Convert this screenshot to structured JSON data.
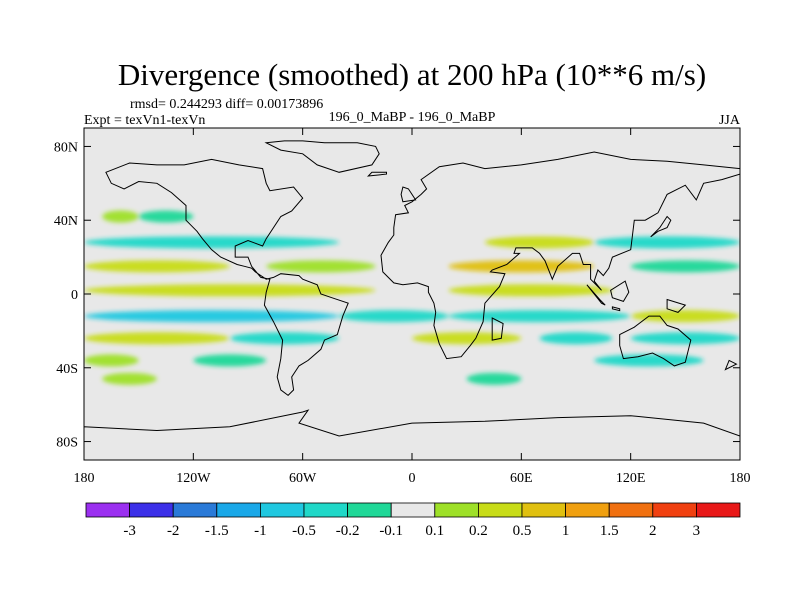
{
  "chart_data": {
    "type": "heatmap",
    "title": "Divergence (smoothed) at 200 hPa (10**6 m/s)",
    "stats": "rmsd= 0.244293 diff= 0.00173896",
    "expt": "Expt = texVn1-texVn",
    "case": "196_0_MaBP - 196_0_MaBP",
    "season": "JJA",
    "xlabel": "",
    "ylabel": "",
    "xlim": [
      -180,
      180
    ],
    "ylim": [
      -90,
      90
    ],
    "x_ticks": [
      {
        "value": -180,
        "label": "180"
      },
      {
        "value": -120,
        "label": "120W"
      },
      {
        "value": -60,
        "label": "60W"
      },
      {
        "value": 0,
        "label": "0"
      },
      {
        "value": 60,
        "label": "60E"
      },
      {
        "value": 120,
        "label": "120E"
      },
      {
        "value": 180,
        "label": "180"
      }
    ],
    "y_ticks": [
      {
        "value": 80,
        "label": "80N"
      },
      {
        "value": 40,
        "label": "40N"
      },
      {
        "value": 0,
        "label": "0"
      },
      {
        "value": -40,
        "label": "40S"
      },
      {
        "value": -80,
        "label": "80S"
      }
    ],
    "colorbar": {
      "colors": [
        "#9b30f0",
        "#3c30e8",
        "#2a7ad8",
        "#1aa8e8",
        "#20c8e0",
        "#20d8c8",
        "#20d898",
        "#e8e8e8",
        "#9ee028",
        "#c8dc18",
        "#e0c010",
        "#f0a010",
        "#f07010",
        "#f04010",
        "#e81818"
      ],
      "labels": [
        "-3",
        "-2",
        "-1.5",
        "-1",
        "-0.5",
        "-0.2",
        "-0.1",
        "0.1",
        "0.2",
        "0.5",
        "1",
        "1.5",
        "2",
        "3"
      ]
    },
    "bands": [
      {
        "lat": 42,
        "lon_start": -170,
        "lon_end": -150,
        "sign": 1,
        "level": 1
      },
      {
        "lat": 42,
        "lon_start": -150,
        "lon_end": -120,
        "sign": -1,
        "level": 1
      },
      {
        "lat": 28,
        "lon_start": -180,
        "lon_end": -40,
        "sign": -1,
        "level": 2
      },
      {
        "lat": 28,
        "lon_start": 40,
        "lon_end": 100,
        "sign": 1,
        "level": 2
      },
      {
        "lat": 28,
        "lon_start": 100,
        "lon_end": 180,
        "sign": -1,
        "level": 2
      },
      {
        "lat": 15,
        "lon_start": -180,
        "lon_end": -100,
        "sign": 1,
        "level": 2
      },
      {
        "lat": 15,
        "lon_start": -80,
        "lon_end": -20,
        "sign": 1,
        "level": 1
      },
      {
        "lat": 15,
        "lon_start": 20,
        "lon_end": 100,
        "sign": 1,
        "level": 3
      },
      {
        "lat": 15,
        "lon_start": 120,
        "lon_end": 180,
        "sign": -1,
        "level": 1
      },
      {
        "lat": 2,
        "lon_start": -180,
        "lon_end": -20,
        "sign": 1,
        "level": 2
      },
      {
        "lat": 2,
        "lon_start": 20,
        "lon_end": 110,
        "sign": 1,
        "level": 2
      },
      {
        "lat": -12,
        "lon_start": -180,
        "lon_end": -40,
        "sign": -1,
        "level": 3
      },
      {
        "lat": -12,
        "lon_start": -40,
        "lon_end": 20,
        "sign": -1,
        "level": 2
      },
      {
        "lat": -12,
        "lon_start": 20,
        "lon_end": 120,
        "sign": -1,
        "level": 2
      },
      {
        "lat": -12,
        "lon_start": 120,
        "lon_end": 180,
        "sign": 1,
        "level": 2
      },
      {
        "lat": -24,
        "lon_start": -180,
        "lon_end": -100,
        "sign": 1,
        "level": 2
      },
      {
        "lat": -24,
        "lon_start": -100,
        "lon_end": -40,
        "sign": -1,
        "level": 2
      },
      {
        "lat": -24,
        "lon_start": 0,
        "lon_end": 60,
        "sign": 1,
        "level": 2
      },
      {
        "lat": -24,
        "lon_start": 70,
        "lon_end": 110,
        "sign": -1,
        "level": 2
      },
      {
        "lat": -24,
        "lon_start": 120,
        "lon_end": 180,
        "sign": -1,
        "level": 2
      },
      {
        "lat": -36,
        "lon_start": -180,
        "lon_end": -150,
        "sign": 1,
        "level": 1
      },
      {
        "lat": -36,
        "lon_start": -120,
        "lon_end": -80,
        "sign": -1,
        "level": 1
      },
      {
        "lat": -36,
        "lon_start": 100,
        "lon_end": 160,
        "sign": -1,
        "level": 2
      },
      {
        "lat": -46,
        "lon_start": -170,
        "lon_end": -140,
        "sign": 1,
        "level": 1
      },
      {
        "lat": -46,
        "lon_start": 30,
        "lon_end": 60,
        "sign": -1,
        "level": 1
      }
    ],
    "coastlines": [
      [
        [
          -80,
          82
        ],
        [
          -70,
          83
        ],
        [
          -60,
          83
        ],
        [
          -48,
          82
        ],
        [
          -30,
          82
        ],
        [
          -20,
          80
        ],
        [
          -18,
          76
        ],
        [
          -22,
          70
        ],
        [
          -40,
          66
        ],
        [
          -52,
          70
        ],
        [
          -60,
          76
        ],
        [
          -72,
          78
        ],
        [
          -80,
          82
        ]
      ],
      [
        [
          -168,
          66
        ],
        [
          -155,
          71
        ],
        [
          -140,
          70
        ],
        [
          -125,
          70
        ],
        [
          -110,
          73
        ],
        [
          -95,
          70
        ],
        [
          -82,
          68
        ],
        [
          -80,
          60
        ],
        [
          -78,
          56
        ],
        [
          -65,
          58
        ],
        [
          -60,
          52
        ],
        [
          -66,
          45
        ],
        [
          -72,
          42
        ],
        [
          -76,
          36
        ],
        [
          -80,
          30
        ],
        [
          -82,
          26
        ],
        [
          -90,
          29
        ],
        [
          -97,
          26
        ],
        [
          -97,
          20
        ],
        [
          -90,
          20
        ],
        [
          -88,
          15
        ],
        [
          -83,
          9
        ],
        [
          -78,
          8
        ],
        [
          -80,
          1
        ],
        [
          -81,
          -6
        ],
        [
          -76,
          -15
        ],
        [
          -71,
          -25
        ],
        [
          -72,
          -35
        ],
        [
          -74,
          -45
        ],
        [
          -72,
          -52
        ],
        [
          -68,
          -55
        ],
        [
          -65,
          -52
        ],
        [
          -66,
          -45
        ],
        [
          -62,
          -39
        ],
        [
          -57,
          -36
        ],
        [
          -50,
          -30
        ],
        [
          -48,
          -25
        ],
        [
          -41,
          -22
        ],
        [
          -38,
          -12
        ],
        [
          -35,
          -5
        ],
        [
          -44,
          -2
        ],
        [
          -50,
          0
        ],
        [
          -52,
          5
        ],
        [
          -60,
          8
        ],
        [
          -62,
          10
        ],
        [
          -72,
          11
        ],
        [
          -76,
          9
        ],
        [
          -80,
          8
        ],
        [
          -86,
          12
        ],
        [
          -88,
          14
        ],
        [
          -92,
          15
        ],
        [
          -96,
          16
        ],
        [
          -105,
          20
        ],
        [
          -110,
          24
        ],
        [
          -115,
          30
        ],
        [
          -118,
          34
        ],
        [
          -124,
          40
        ],
        [
          -124,
          48
        ],
        [
          -132,
          55
        ],
        [
          -140,
          60
        ],
        [
          -150,
          61
        ],
        [
          -158,
          57
        ],
        [
          -165,
          60
        ],
        [
          -168,
          66
        ]
      ],
      [
        [
          -10,
          36
        ],
        [
          -9,
          43
        ],
        [
          -2,
          44
        ],
        [
          -4,
          48
        ],
        [
          0,
          50
        ],
        [
          5,
          54
        ],
        [
          8,
          57
        ],
        [
          5,
          62
        ],
        [
          15,
          69
        ],
        [
          28,
          71
        ],
        [
          40,
          68
        ],
        [
          60,
          70
        ],
        [
          80,
          73
        ],
        [
          100,
          77
        ],
        [
          120,
          73
        ],
        [
          140,
          72
        ],
        [
          160,
          70
        ],
        [
          180,
          68
        ],
        [
          180,
          65
        ],
        [
          170,
          62
        ],
        [
          160,
          60
        ],
        [
          156,
          51
        ],
        [
          150,
          59
        ],
        [
          140,
          54
        ],
        [
          135,
          44
        ],
        [
          128,
          40
        ],
        [
          122,
          40
        ],
        [
          121,
          32
        ],
        [
          120,
          24
        ],
        [
          110,
          20
        ],
        [
          108,
          14
        ],
        [
          105,
          10
        ],
        [
          102,
          13
        ],
        [
          100,
          7
        ],
        [
          104,
          2
        ],
        [
          98,
          8
        ],
        [
          98,
          16
        ],
        [
          94,
          16
        ],
        [
          92,
          22
        ],
        [
          88,
          22
        ],
        [
          80,
          15
        ],
        [
          77,
          8
        ],
        [
          73,
          18
        ],
        [
          70,
          22
        ],
        [
          66,
          25
        ],
        [
          57,
          25
        ],
        [
          56,
          22
        ],
        [
          59,
          22
        ],
        [
          52,
          16
        ],
        [
          44,
          13
        ],
        [
          43,
          12
        ],
        [
          51,
          11
        ],
        [
          48,
          4
        ],
        [
          40,
          -5
        ],
        [
          39,
          -15
        ],
        [
          35,
          -24
        ],
        [
          32,
          -28
        ],
        [
          27,
          -34
        ],
        [
          19,
          -35
        ],
        [
          15,
          -27
        ],
        [
          12,
          -17
        ],
        [
          13,
          -10
        ],
        [
          12,
          -5
        ],
        [
          9,
          1
        ],
        [
          9,
          4
        ],
        [
          3,
          6
        ],
        [
          -5,
          5
        ],
        [
          -10,
          6
        ],
        [
          -16,
          12
        ],
        [
          -17,
          21
        ],
        [
          -13,
          28
        ],
        [
          -10,
          32
        ],
        [
          -10,
          36
        ]
      ],
      [
        [
          114,
          -22
        ],
        [
          122,
          -18
        ],
        [
          130,
          -12
        ],
        [
          136,
          -12
        ],
        [
          140,
          -17
        ],
        [
          146,
          -19
        ],
        [
          153,
          -25
        ],
        [
          150,
          -37
        ],
        [
          144,
          -39
        ],
        [
          138,
          -35
        ],
        [
          132,
          -32
        ],
        [
          124,
          -34
        ],
        [
          116,
          -35
        ],
        [
          114,
          -28
        ],
        [
          114,
          -22
        ]
      ],
      [
        [
          -180,
          -72
        ],
        [
          -140,
          -74
        ],
        [
          -100,
          -72
        ],
        [
          -60,
          -64
        ],
        [
          -57,
          -63
        ],
        [
          -62,
          -70
        ],
        [
          -40,
          -77
        ],
        [
          0,
          -70
        ],
        [
          40,
          -69
        ],
        [
          80,
          -67
        ],
        [
          120,
          -66
        ],
        [
          160,
          -70
        ],
        [
          180,
          -77
        ],
        [
          180,
          -90
        ],
        [
          -180,
          -90
        ],
        [
          -180,
          -72
        ]
      ],
      [
        [
          44,
          -13
        ],
        [
          50,
          -16
        ],
        [
          49,
          -24
        ],
        [
          44,
          -25
        ],
        [
          44,
          -13
        ]
      ],
      [
        [
          -5,
          50
        ],
        [
          2,
          51
        ],
        [
          -2,
          57
        ],
        [
          -5,
          58
        ],
        [
          -6,
          54
        ],
        [
          -5,
          50
        ]
      ],
      [
        [
          131,
          31
        ],
        [
          135,
          34
        ],
        [
          140,
          36
        ],
        [
          142,
          40
        ],
        [
          140,
          42
        ],
        [
          136,
          36
        ],
        [
          131,
          31
        ]
      ],
      [
        [
          -24,
          64
        ],
        [
          -14,
          65
        ],
        [
          -14,
          66
        ],
        [
          -22,
          66
        ],
        [
          -24,
          64
        ]
      ],
      [
        [
          96,
          5
        ],
        [
          104,
          -5
        ],
        [
          106,
          -6
        ],
        [
          103,
          -3
        ],
        [
          96,
          5
        ]
      ],
      [
        [
          140,
          -3
        ],
        [
          150,
          -6
        ],
        [
          146,
          -10
        ],
        [
          140,
          -8
        ],
        [
          140,
          -3
        ]
      ],
      [
        [
          110,
          -7
        ],
        [
          114,
          -8
        ],
        [
          114,
          -9
        ],
        [
          110,
          -8
        ],
        [
          110,
          -7
        ]
      ],
      [
        [
          109,
          2
        ],
        [
          117,
          7
        ],
        [
          119,
          1
        ],
        [
          116,
          -4
        ],
        [
          110,
          -2
        ],
        [
          109,
          2
        ]
      ],
      [
        [
          172,
          -41
        ],
        [
          174,
          -36
        ],
        [
          178,
          -38
        ],
        [
          172,
          -41
        ]
      ]
    ]
  }
}
